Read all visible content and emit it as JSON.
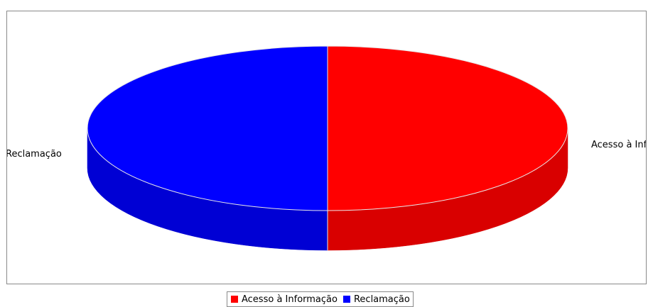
{
  "chart_data": {
    "type": "pie",
    "title": "",
    "slices": [
      {
        "label": "Acesso à Informação",
        "value": 50,
        "color": "#ff0000",
        "depth_color": "#d90000"
      },
      {
        "label": "Reclamação",
        "value": 50,
        "color": "#0000ff",
        "depth_color": "#0000d4"
      }
    ],
    "labels": {
      "right": "Acesso à Info",
      "left": "Reclamação"
    },
    "three_d": true,
    "legend_position": "bottom"
  },
  "legend": {
    "items": [
      {
        "label": "Acesso à Informação",
        "color": "#ff0000"
      },
      {
        "label": "Reclamação",
        "color": "#0000ff"
      }
    ]
  }
}
